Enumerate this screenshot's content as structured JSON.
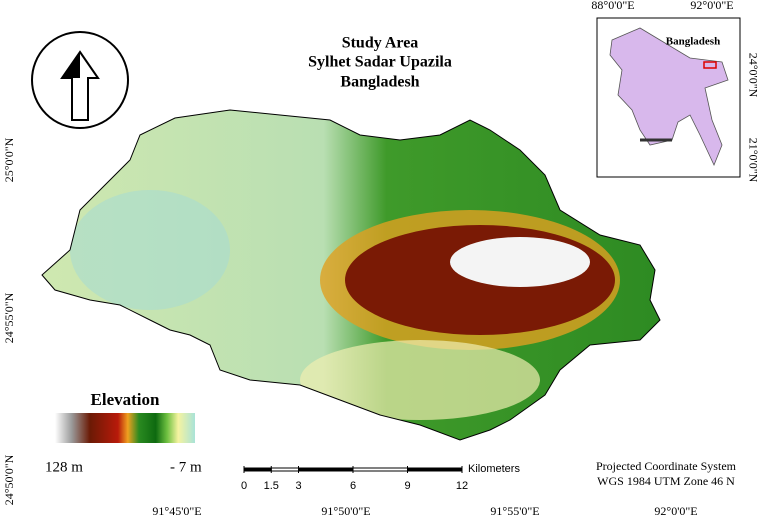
{
  "title": [
    "Study Area",
    "Sylhet Sadar Upazila",
    "Bangladesh"
  ],
  "legend": {
    "title": "Elevation",
    "max": "128 m",
    "min": "- 7 m"
  },
  "scale_bar": {
    "unit": "Kilometers",
    "ticks": [
      0,
      1.5,
      3,
      6,
      9,
      12
    ]
  },
  "projection": [
    "Projected Coordinate System",
    "WGS 1984 UTM Zone 46 N"
  ],
  "inset": {
    "label": "Bangladesh",
    "top_labels": [
      "88°0'0\"E",
      "92°0'0\"E"
    ],
    "right_labels": [
      "24°0'0\"N",
      "21°0'0\"N"
    ]
  },
  "frame": {
    "bottom_labels": [
      "91°45'0\"E",
      "91°50'0\"E",
      "91°55'0\"E",
      "92°0'0\"E"
    ],
    "left_labels": [
      "25°0'0\"N",
      "24°55'0\"N",
      "24°50'0\"N"
    ]
  }
}
